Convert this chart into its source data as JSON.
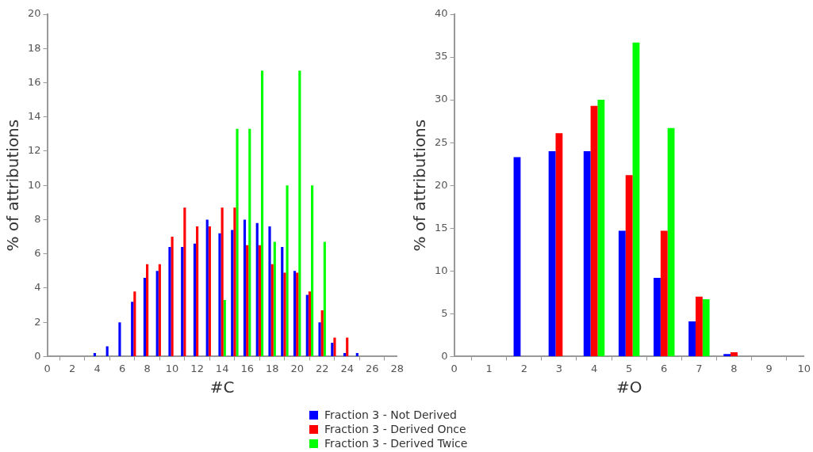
{
  "chart_data": [
    {
      "type": "bar",
      "xlabel": "#C",
      "ylabel": "% of attributions",
      "x": [
        4,
        5,
        6,
        7,
        8,
        9,
        10,
        11,
        12,
        13,
        14,
        15,
        16,
        17,
        18,
        19,
        20,
        21,
        22,
        23,
        24,
        25
      ],
      "series": [
        {
          "name": "Fraction 3 - Not Derived",
          "color": "#0000ff",
          "values": [
            0.2,
            0.6,
            2.0,
            3.2,
            4.6,
            5.0,
            6.4,
            6.4,
            6.6,
            8.0,
            7.2,
            7.4,
            8.0,
            7.8,
            7.6,
            6.4,
            5.0,
            3.6,
            2.0,
            0.8,
            0.2,
            0.2
          ]
        },
        {
          "name": "Fraction 3 - Derived Once",
          "color": "#ff0000",
          "values": [
            null,
            null,
            null,
            3.8,
            5.4,
            5.4,
            7.0,
            8.7,
            7.6,
            7.6,
            8.7,
            8.7,
            6.5,
            6.5,
            5.4,
            4.9,
            4.9,
            3.8,
            2.7,
            1.1,
            1.1,
            null
          ]
        },
        {
          "name": "Fraction 3 - Derived Twice",
          "color": "#00ff00",
          "values": [
            null,
            null,
            null,
            null,
            null,
            null,
            null,
            null,
            null,
            null,
            3.3,
            13.3,
            13.3,
            16.7,
            6.7,
            10.0,
            16.7,
            10.0,
            6.7,
            null,
            null,
            null
          ]
        }
      ],
      "xlim": [
        0,
        28
      ],
      "xticks": [
        0,
        2,
        4,
        6,
        8,
        10,
        12,
        14,
        16,
        18,
        20,
        22,
        24,
        26,
        28
      ],
      "ylim": [
        0,
        20
      ],
      "yticks": [
        0,
        2,
        4,
        6,
        8,
        10,
        12,
        14,
        16,
        18,
        20
      ],
      "grid": false,
      "legend": "bottom"
    },
    {
      "type": "bar",
      "xlabel": "#O",
      "ylabel": "% of attributions",
      "x": [
        2,
        3,
        4,
        5,
        6,
        7,
        8
      ],
      "series": [
        {
          "color": "#0000ff",
          "values": [
            23.3,
            24.0,
            24.0,
            14.7,
            9.2,
            4.1,
            0.3
          ]
        },
        {
          "color": "#ff0000",
          "values": [
            null,
            26.1,
            29.3,
            21.2,
            14.7,
            7.0,
            0.5
          ]
        },
        {
          "color": "#00ff00",
          "values": [
            null,
            null,
            30.0,
            36.7,
            26.7,
            6.7,
            null
          ]
        }
      ],
      "xlim": [
        0,
        10
      ],
      "xticks": [
        0,
        1,
        2,
        3,
        4,
        5,
        6,
        7,
        8,
        9,
        10
      ],
      "ylim": [
        0,
        40
      ],
      "yticks": [
        0,
        5,
        10,
        15,
        20,
        25,
        30,
        35,
        40
      ],
      "grid": false
    }
  ]
}
